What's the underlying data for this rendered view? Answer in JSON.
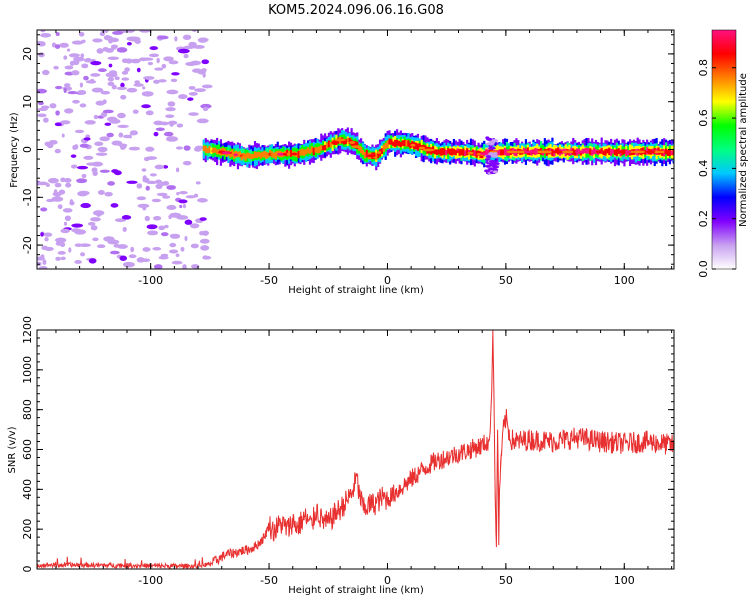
{
  "figure": {
    "title": "KOM5.2024.096.06.16.G08"
  },
  "chart_data": [
    {
      "type": "heatmap",
      "name": "spectrogram",
      "xlabel": "Height of straight line (km)",
      "ylabel": "Frequency (Hz)",
      "xlim": [
        -148,
        121
      ],
      "ylim": [
        -25,
        25
      ],
      "x_ticks": [
        -100,
        -50,
        0,
        50,
        100
      ],
      "y_ticks": [
        -20,
        -10,
        0,
        10,
        20
      ],
      "colorbar": {
        "label": "Normalized spectral amplitude",
        "range": [
          0,
          0.95
        ],
        "ticks": [
          0.0,
          0.2,
          0.4,
          0.6,
          0.8
        ],
        "colormap": [
          "#ffffff",
          "#c8a0f0",
          "#8000ff",
          "#0000ff",
          "#00c8ff",
          "#00ff80",
          "#00ff00",
          "#ffff00",
          "#ff8000",
          "#ff0000",
          "#ff1080"
        ]
      },
      "signal_track": {
        "x": [
          -78,
          -70,
          -60,
          -50,
          -40,
          -30,
          -25,
          -20,
          -15,
          -10,
          -5,
          0,
          10,
          20,
          30,
          40,
          45,
          50,
          60,
          80,
          100,
          121
        ],
        "y": [
          0,
          -0.5,
          -1.5,
          -1,
          -1,
          0,
          1,
          2,
          1.5,
          -1,
          -1.5,
          1.5,
          1,
          -0.5,
          -0.5,
          -1,
          -0.5,
          -0.5,
          -0.5,
          -0.5,
          -0.5,
          -0.5
        ]
      },
      "noise_region_x": [
        -148,
        -76
      ],
      "disturbance": {
        "x": 44,
        "y_range": [
          -5,
          3
        ]
      }
    },
    {
      "type": "line",
      "name": "snr",
      "xlabel": "Height of straight line (km)",
      "ylabel": "SNR (v/v)",
      "xlim": [
        -148,
        121
      ],
      "ylim": [
        0,
        1200
      ],
      "x_ticks": [
        -100,
        -50,
        0,
        50,
        100
      ],
      "y_ticks": [
        0,
        200,
        400,
        600,
        800,
        1000,
        1200
      ],
      "color": "#e83030",
      "series": [
        {
          "x": [
            -148,
            -130,
            -110,
            -90,
            -80,
            -75,
            -72,
            -70,
            -68,
            -65,
            -62,
            -58,
            -55,
            -52,
            -50,
            -48,
            -45,
            -42,
            -40,
            -38,
            -35,
            -32,
            -30,
            -28,
            -25,
            -22,
            -20,
            -18,
            -15,
            -13,
            -12,
            -10,
            -8,
            -5,
            -2,
            0,
            5,
            10,
            15,
            20,
            25,
            30,
            35,
            40,
            42,
            43,
            44,
            44.5,
            45,
            45.5,
            46,
            46.5,
            47,
            48,
            49,
            50,
            52,
            55,
            60,
            70,
            80,
            90,
            100,
            110,
            121
          ],
          "y": [
            20,
            20,
            18,
            15,
            15,
            25,
            45,
            60,
            75,
            80,
            90,
            100,
            120,
            160,
            220,
            190,
            230,
            200,
            240,
            210,
            260,
            220,
            300,
            250,
            230,
            280,
            300,
            330,
            380,
            460,
            380,
            300,
            320,
            330,
            360,
            350,
            400,
            450,
            500,
            540,
            560,
            580,
            600,
            620,
            640,
            620,
            880,
            1200,
            850,
            350,
            110,
            700,
            320,
            560,
            700,
            760,
            650,
            640,
            650,
            640,
            660,
            640,
            630,
            640,
            620
          ]
        }
      ]
    }
  ]
}
